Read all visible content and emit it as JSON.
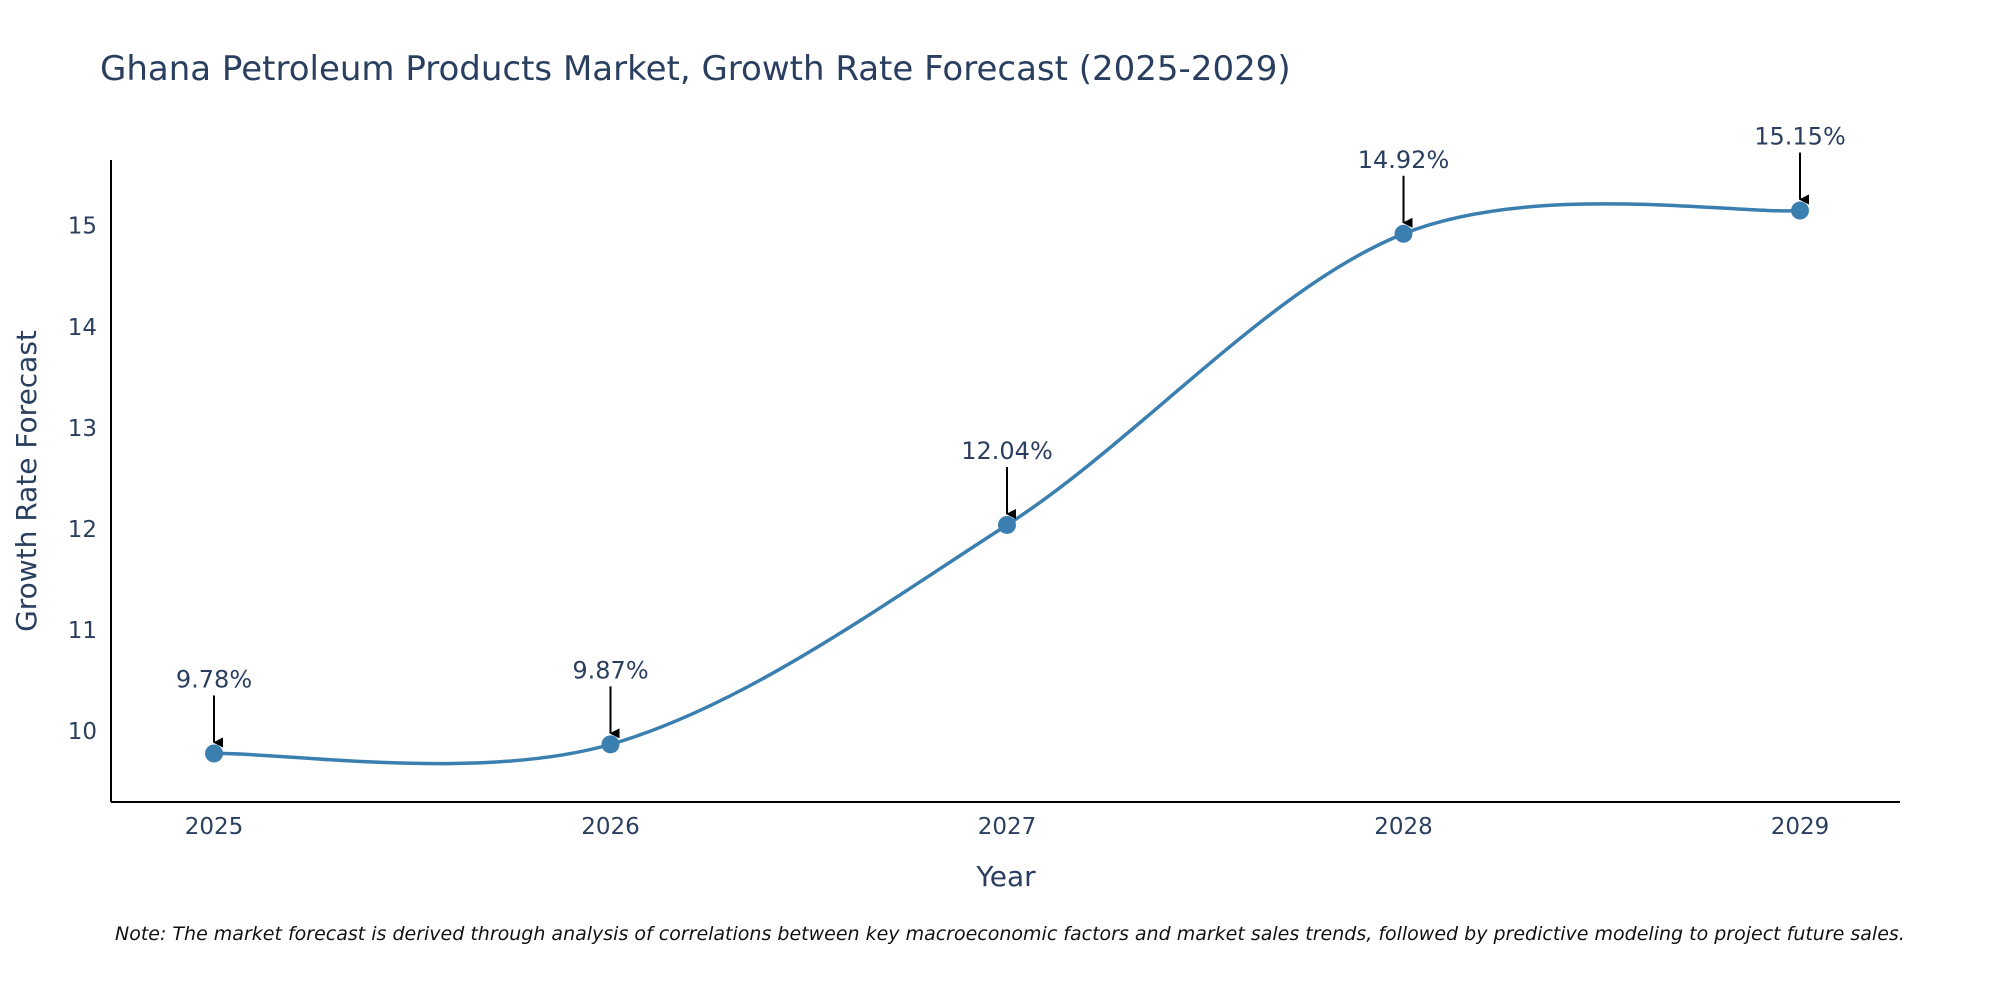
{
  "chart_data": {
    "type": "line",
    "title": "Ghana Petroleum Products Market, Growth Rate Forecast (2025-2029)",
    "xlabel": "Year",
    "ylabel": "Growth Rate Forecast",
    "categories": [
      "2025",
      "2026",
      "2027",
      "2028",
      "2029"
    ],
    "series": [
      {
        "name": "Growth Rate Forecast",
        "values": [
          9.78,
          9.87,
          12.04,
          14.92,
          15.15
        ],
        "labels": [
          "9.78%",
          "9.87%",
          "12.04%",
          "14.92%",
          "15.15%"
        ],
        "color": "#3b7fb0"
      }
    ],
    "yticks": [
      "10",
      "11",
      "12",
      "13",
      "14",
      "15"
    ],
    "ylim": [
      9.3,
      15.65
    ],
    "grid": false,
    "note": "Note: The market forecast is derived through analysis of correlations between key macroeconomic factors and market sales trends, followed by predictive modeling to project future sales."
  }
}
